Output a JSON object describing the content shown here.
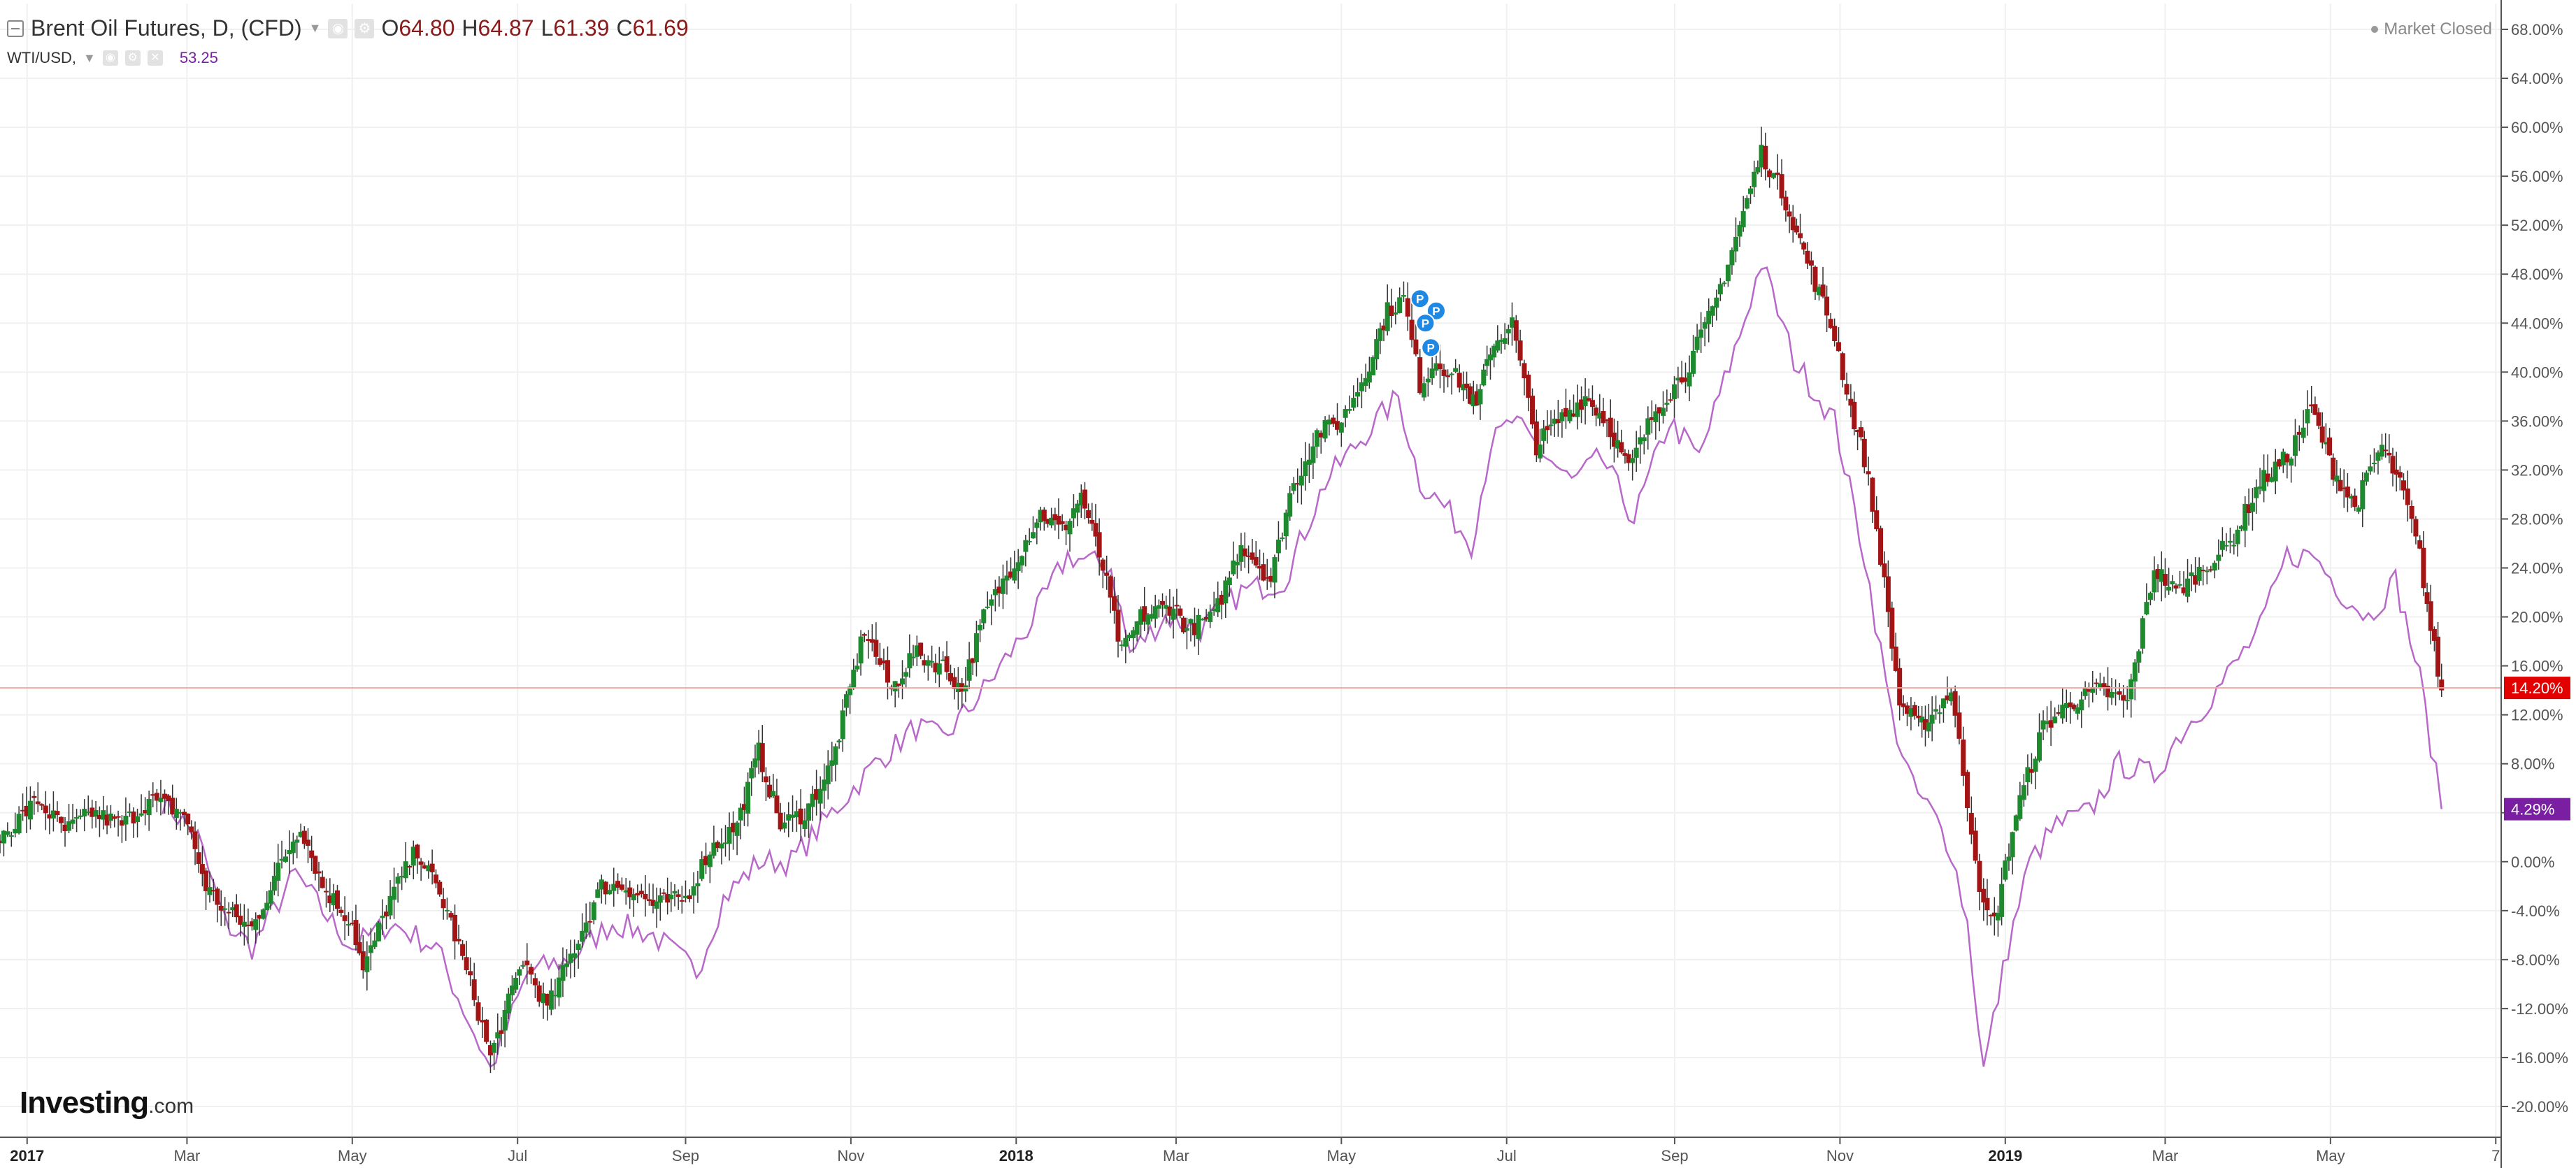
{
  "legend": {
    "symbol": "Brent Oil Futures, D, (CFD)",
    "ohlc": [
      {
        "key": "O",
        "value": "64.80"
      },
      {
        "key": "H",
        "value": "64.87"
      },
      {
        "key": "L",
        "value": "61.39"
      },
      {
        "key": "C",
        "value": "61.69"
      }
    ],
    "compare_symbol": "WTI/USD,",
    "compare_value": "53.25"
  },
  "status": {
    "market": "Market Closed"
  },
  "branding": {
    "logo": "Investing",
    "logo_suffix": ".com"
  },
  "colors": {
    "up": "#1e8a2e",
    "down": "#a31515",
    "wick": "#333333",
    "compare": "#b768c9",
    "crosshair": "#f2a7a7",
    "price_badge": "#e30000",
    "compare_badge": "#7b1fa2",
    "grid": "#f0f0f0",
    "axis_text": "#555555"
  },
  "chart_data": {
    "type": "candlestick",
    "ylabel_unit": "%",
    "ylim": [
      -22,
      69
    ],
    "y_ticks": [
      "68.00%",
      "64.00%",
      "60.00%",
      "56.00%",
      "52.00%",
      "48.00%",
      "44.00%",
      "40.00%",
      "36.00%",
      "32.00%",
      "28.00%",
      "24.00%",
      "20.00%",
      "16.00%",
      "12.00%",
      "8.00%",
      "4.00%",
      "0.00%",
      "-4.00%",
      "-8.00%",
      "-12.00%",
      "-16.00%",
      "-20.00%"
    ],
    "y_tick_values": [
      68,
      64,
      60,
      56,
      52,
      48,
      44,
      40,
      36,
      32,
      28,
      24,
      20,
      16,
      12,
      8,
      4,
      0,
      -4,
      -8,
      -12,
      -16,
      -20
    ],
    "x_ticks": [
      {
        "label": "2017",
        "date": "2017-01-01",
        "bold": true
      },
      {
        "label": "Mar",
        "date": "2017-03-01",
        "bold": false
      },
      {
        "label": "May",
        "date": "2017-05-01",
        "bold": false
      },
      {
        "label": "Jul",
        "date": "2017-07-01",
        "bold": false
      },
      {
        "label": "Sep",
        "date": "2017-09-01",
        "bold": false
      },
      {
        "label": "Nov",
        "date": "2017-11-01",
        "bold": false
      },
      {
        "label": "2018",
        "date": "2018-01-01",
        "bold": true
      },
      {
        "label": "Mar",
        "date": "2018-03-01",
        "bold": false
      },
      {
        "label": "May",
        "date": "2018-05-01",
        "bold": false
      },
      {
        "label": "Jul",
        "date": "2018-07-01",
        "bold": false
      },
      {
        "label": "Sep",
        "date": "2018-09-01",
        "bold": false
      },
      {
        "label": "Nov",
        "date": "2018-11-01",
        "bold": false
      },
      {
        "label": "2019",
        "date": "2019-01-01",
        "bold": true
      },
      {
        "label": "Mar",
        "date": "2019-03-01",
        "bold": false
      },
      {
        "label": "May",
        "date": "2019-05-01",
        "bold": false
      },
      {
        "label": "7",
        "date": "2019-07-01",
        "bold": false
      }
    ],
    "x_range": [
      "2016-12-22",
      "2019-07-03"
    ],
    "series": [
      {
        "name": "Brent Oil Futures",
        "kind": "candles",
        "points": [
          [
            "2016-12-22",
            2
          ],
          [
            "2017-01-05",
            5
          ],
          [
            "2017-01-15",
            2.5
          ],
          [
            "2017-01-25",
            4
          ],
          [
            "2017-02-05",
            3
          ],
          [
            "2017-02-15",
            5
          ],
          [
            "2017-02-28",
            4
          ],
          [
            "2017-03-08",
            -2
          ],
          [
            "2017-03-15",
            -4
          ],
          [
            "2017-03-25",
            -5.5
          ],
          [
            "2017-04-05",
            0
          ],
          [
            "2017-04-12",
            3
          ],
          [
            "2017-04-20",
            -2
          ],
          [
            "2017-05-01",
            -5
          ],
          [
            "2017-05-05",
            -9
          ],
          [
            "2017-05-15",
            -3
          ],
          [
            "2017-05-25",
            1
          ],
          [
            "2017-06-05",
            -4
          ],
          [
            "2017-06-15",
            -11
          ],
          [
            "2017-06-21",
            -16
          ],
          [
            "2017-07-03",
            -8
          ],
          [
            "2017-07-12",
            -12
          ],
          [
            "2017-07-22",
            -7
          ],
          [
            "2017-08-01",
            -2
          ],
          [
            "2017-08-10",
            -2
          ],
          [
            "2017-08-20",
            -3.5
          ],
          [
            "2017-09-01",
            -3
          ],
          [
            "2017-09-10",
            1
          ],
          [
            "2017-09-20",
            3
          ],
          [
            "2017-09-28",
            9
          ],
          [
            "2017-10-06",
            3
          ],
          [
            "2017-10-15",
            4
          ],
          [
            "2017-10-25",
            8
          ],
          [
            "2017-11-06",
            19
          ],
          [
            "2017-11-16",
            14
          ],
          [
            "2017-11-24",
            17
          ],
          [
            "2017-12-05",
            16
          ],
          [
            "2017-12-12",
            14
          ],
          [
            "2017-12-20",
            20
          ],
          [
            "2017-12-30",
            24
          ],
          [
            "2018-01-10",
            28.5
          ],
          [
            "2018-01-18",
            27
          ],
          [
            "2018-01-25",
            30
          ],
          [
            "2018-02-02",
            24
          ],
          [
            "2018-02-09",
            17
          ],
          [
            "2018-02-16",
            20
          ],
          [
            "2018-02-28",
            21
          ],
          [
            "2018-03-05",
            19
          ],
          [
            "2018-03-15",
            20
          ],
          [
            "2018-03-25",
            26
          ],
          [
            "2018-04-05",
            23
          ],
          [
            "2018-04-12",
            30
          ],
          [
            "2018-04-22",
            35
          ],
          [
            "2018-05-01",
            36
          ],
          [
            "2018-05-10",
            40
          ],
          [
            "2018-05-18",
            45
          ],
          [
            "2018-05-24",
            46
          ],
          [
            "2018-05-30",
            39
          ],
          [
            "2018-06-05",
            41
          ],
          [
            "2018-06-15",
            39
          ],
          [
            "2018-06-20",
            37
          ],
          [
            "2018-06-25",
            42
          ],
          [
            "2018-07-03",
            44
          ],
          [
            "2018-07-12",
            34
          ],
          [
            "2018-07-20",
            36
          ],
          [
            "2018-07-30",
            38
          ],
          [
            "2018-08-07",
            36
          ],
          [
            "2018-08-15",
            32
          ],
          [
            "2018-08-25",
            37
          ],
          [
            "2018-09-05",
            40
          ],
          [
            "2018-09-15",
            45
          ],
          [
            "2018-09-25",
            52
          ],
          [
            "2018-10-03",
            58
          ],
          [
            "2018-10-12",
            54
          ],
          [
            "2018-10-20",
            49
          ],
          [
            "2018-10-30",
            43
          ],
          [
            "2018-11-05",
            37
          ],
          [
            "2018-11-10",
            33
          ],
          [
            "2018-11-16",
            25
          ],
          [
            "2018-11-23",
            13
          ],
          [
            "2018-11-30",
            11
          ],
          [
            "2018-12-05",
            12
          ],
          [
            "2018-12-12",
            14
          ],
          [
            "2018-12-18",
            5
          ],
          [
            "2018-12-24",
            -4
          ],
          [
            "2018-12-28",
            -5
          ],
          [
            "2019-01-05",
            4
          ],
          [
            "2019-01-15",
            11
          ],
          [
            "2019-01-25",
            13
          ],
          [
            "2019-02-05",
            14
          ],
          [
            "2019-02-15",
            13
          ],
          [
            "2019-02-25",
            24
          ],
          [
            "2019-03-05",
            22
          ],
          [
            "2019-03-15",
            24
          ],
          [
            "2019-03-25",
            26
          ],
          [
            "2019-04-05",
            31
          ],
          [
            "2019-04-15",
            33
          ],
          [
            "2019-04-24",
            37
          ],
          [
            "2019-05-02",
            32
          ],
          [
            "2019-05-10",
            29
          ],
          [
            "2019-05-20",
            34
          ],
          [
            "2019-05-28",
            30
          ],
          [
            "2019-06-03",
            25
          ],
          [
            "2019-06-07",
            19
          ],
          [
            "2019-06-11",
            14
          ]
        ]
      },
      {
        "name": "WTI/USD",
        "kind": "line",
        "points": [
          [
            "2017-02-20",
            5
          ],
          [
            "2017-03-05",
            2
          ],
          [
            "2017-03-15",
            -5
          ],
          [
            "2017-03-25",
            -7
          ],
          [
            "2017-04-10",
            -1
          ],
          [
            "2017-04-20",
            -4
          ],
          [
            "2017-05-01",
            -7
          ],
          [
            "2017-05-15",
            -5
          ],
          [
            "2017-06-01",
            -7
          ],
          [
            "2017-06-21",
            -17
          ],
          [
            "2017-07-05",
            -9
          ],
          [
            "2017-07-20",
            -8
          ],
          [
            "2017-08-05",
            -5
          ],
          [
            "2017-08-20",
            -6
          ],
          [
            "2017-09-05",
            -9
          ],
          [
            "2017-09-15",
            -3
          ],
          [
            "2017-09-28",
            0
          ],
          [
            "2017-10-10",
            0
          ],
          [
            "2017-10-25",
            4
          ],
          [
            "2017-11-10",
            8
          ],
          [
            "2017-11-25",
            11
          ],
          [
            "2017-12-05",
            10
          ],
          [
            "2017-12-20",
            14
          ],
          [
            "2018-01-05",
            19
          ],
          [
            "2018-01-20",
            25
          ],
          [
            "2018-02-05",
            24
          ],
          [
            "2018-02-12",
            17
          ],
          [
            "2018-02-25",
            20
          ],
          [
            "2018-03-10",
            19
          ],
          [
            "2018-03-25",
            22
          ],
          [
            "2018-04-10",
            23
          ],
          [
            "2018-04-25",
            31
          ],
          [
            "2018-05-10",
            35
          ],
          [
            "2018-05-22",
            38
          ],
          [
            "2018-05-30",
            31
          ],
          [
            "2018-06-08",
            29
          ],
          [
            "2018-06-18",
            26
          ],
          [
            "2018-06-25",
            34
          ],
          [
            "2018-07-03",
            36
          ],
          [
            "2018-07-12",
            34
          ],
          [
            "2018-07-25",
            31
          ],
          [
            "2018-08-05",
            33
          ],
          [
            "2018-08-17",
            28
          ],
          [
            "2018-08-30",
            36
          ],
          [
            "2018-09-10",
            33
          ],
          [
            "2018-09-25",
            43
          ],
          [
            "2018-10-03",
            49
          ],
          [
            "2018-10-15",
            41
          ],
          [
            "2018-10-30",
            36
          ],
          [
            "2018-11-10",
            25
          ],
          [
            "2018-11-20",
            12
          ],
          [
            "2018-11-28",
            6
          ],
          [
            "2018-12-05",
            4
          ],
          [
            "2018-12-12",
            1
          ],
          [
            "2018-12-18",
            -5
          ],
          [
            "2018-12-24",
            -17
          ],
          [
            "2019-01-02",
            -7
          ],
          [
            "2019-01-10",
            0
          ],
          [
            "2019-01-20",
            3
          ],
          [
            "2019-02-01",
            4
          ],
          [
            "2019-02-12",
            8
          ],
          [
            "2019-02-25",
            7
          ],
          [
            "2019-03-05",
            10
          ],
          [
            "2019-03-20",
            14
          ],
          [
            "2019-04-05",
            19
          ],
          [
            "2019-04-15",
            25
          ],
          [
            "2019-04-25",
            25
          ],
          [
            "2019-05-05",
            22
          ],
          [
            "2019-05-15",
            20
          ],
          [
            "2019-05-25",
            23
          ],
          [
            "2019-06-03",
            15
          ],
          [
            "2019-06-11",
            4.3
          ]
        ]
      }
    ],
    "price_level": 14.2,
    "price_label": "14.20%",
    "compare_level": 4.29,
    "compare_label": "4.29%",
    "markers": [
      {
        "label": "P",
        "date": "2018-05-30",
        "value": 46
      },
      {
        "label": "P",
        "date": "2018-06-05",
        "value": 45
      },
      {
        "label": "P",
        "date": "2018-06-01",
        "value": 44
      },
      {
        "label": "P",
        "date": "2018-06-03",
        "value": 42
      }
    ],
    "grid": true,
    "legend_position": "top-left"
  }
}
